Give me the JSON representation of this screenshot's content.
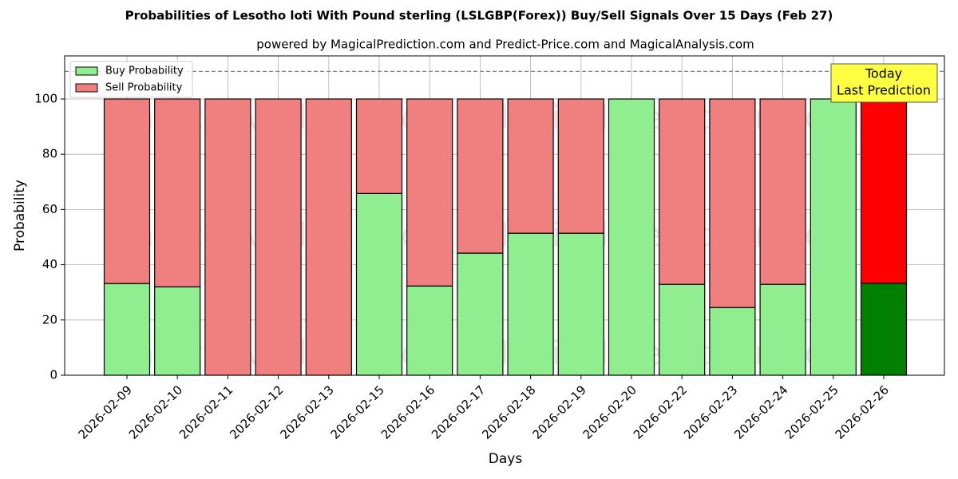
{
  "chart_data": {
    "type": "stacked-bar",
    "title": "Probabilities of Lesotho loti With Pound sterling (LSLGBP(Forex)) Buy/Sell Signals Over 15 Days (Feb 27)",
    "subtitle": "powered by MagicalPrediction.com and Predict-Price.com and MagicalAnalysis.com",
    "x_label": "Days",
    "y_label": "Probability",
    "categories": [
      "2026-02-09",
      "2026-02-10",
      "2026-02-11",
      "2026-02-12",
      "2026-02-13",
      "2026-02-15",
      "2026-02-16",
      "2026-02-17",
      "2026-02-18",
      "2026-02-19",
      "2026-02-20",
      "2026-02-22",
      "2026-02-23",
      "2026-02-24",
      "2026-02-25",
      "2026-02-26"
    ],
    "series": [
      {
        "name": "Buy Probability",
        "color": "#90ee90",
        "highlight_color": "#008000",
        "values": [
          33.2,
          32,
          0,
          0,
          0,
          65.8,
          32.3,
          44.2,
          51.4,
          51.4,
          100,
          32.9,
          24.5,
          32.9,
          100,
          33.3
        ]
      },
      {
        "name": "Sell Probability",
        "color": "#f08080",
        "highlight_color": "#ff0000",
        "values": [
          66.8,
          68,
          100,
          100,
          100,
          34.2,
          67.7,
          55.8,
          48.6,
          48.6,
          0,
          67.1,
          75.5,
          67.1,
          0,
          66.7
        ]
      }
    ],
    "highlight_last": true,
    "ylim": [
      0,
      115.6
    ],
    "yticks": [
      0,
      20,
      40,
      60,
      80,
      100
    ],
    "reference_line": 110,
    "grid": true,
    "legend": "upper-left",
    "annotation": [
      "Today",
      "Last Prediction"
    ],
    "watermarks": [
      "MagicalAnalysis.com",
      "MagicalPrediction.com"
    ]
  }
}
